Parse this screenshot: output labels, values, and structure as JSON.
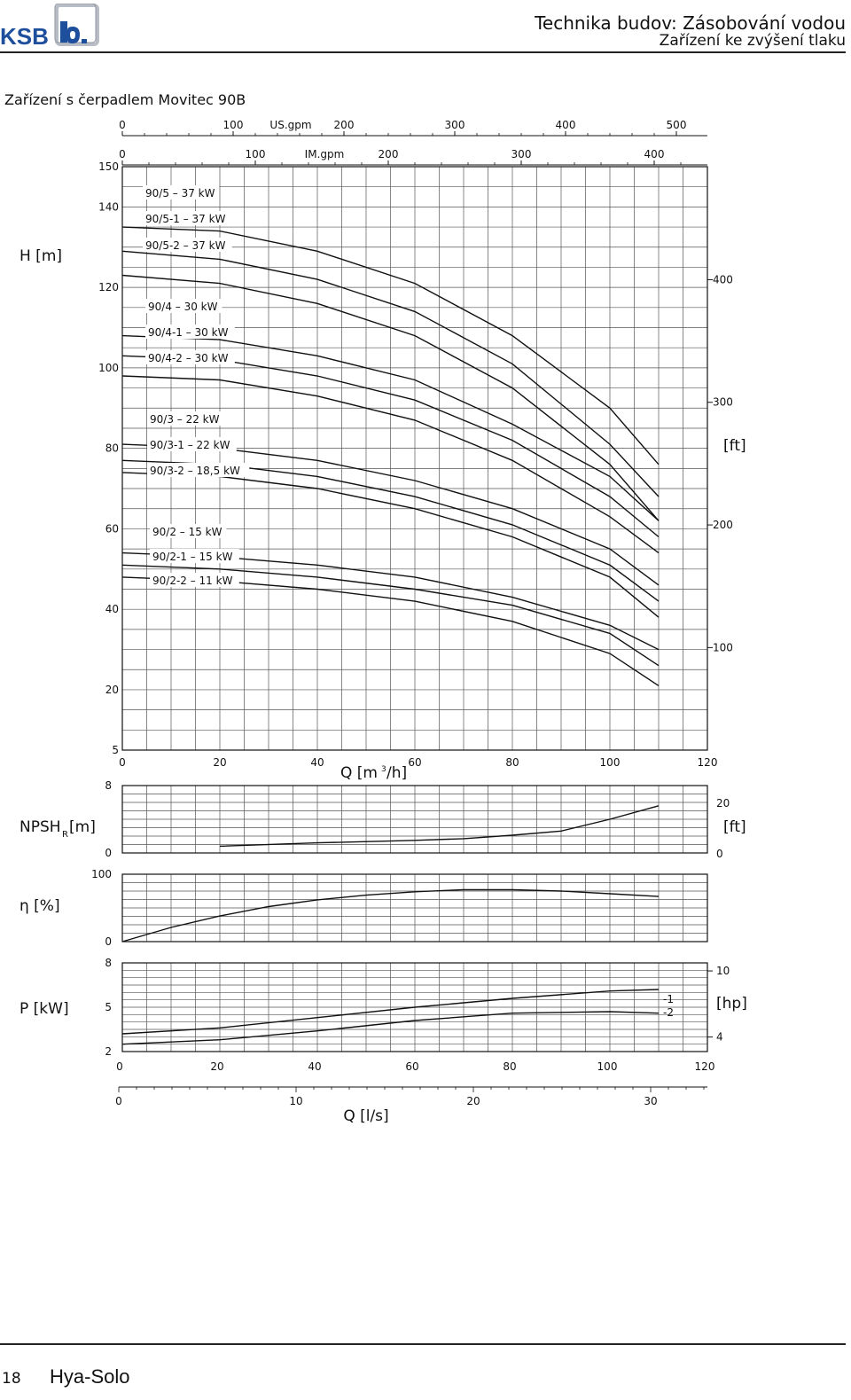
{
  "header": {
    "brand": "KSB",
    "title": "Technika budov: Zásobování vodou",
    "subtitle": "Zařízení ke zvýšení tlaku"
  },
  "section_title": "Zařízení s čerpadlem Movitec 90B",
  "footer": {
    "page": "18",
    "brand": "Hya-Solo"
  },
  "chart_data": {
    "type": "line",
    "top_axes": [
      {
        "unit": "US.gpm",
        "ticks": [
          "0",
          "100",
          "200",
          "300",
          "400",
          "500"
        ]
      },
      {
        "unit": "IM.gpm",
        "ticks": [
          "0",
          "100",
          "200",
          "300",
          "400"
        ]
      }
    ],
    "x_axis": {
      "label_prefix": "Q [m",
      "label_sup": "3",
      "label_suffix": "/h]",
      "range": [
        0,
        120
      ],
      "ticks": [
        "0",
        "20",
        "40",
        "60",
        "80",
        "100",
        "120"
      ]
    },
    "x_axis_ls": {
      "label": "Q [l/s]",
      "ticks": [
        "0",
        "10",
        "20",
        "30"
      ]
    },
    "panels": {
      "head": {
        "ylabel": "H [m]",
        "ylabel_right": "[ft]",
        "ylim": [
          5,
          150
        ],
        "y_ticks": [
          "150",
          "140",
          "120",
          "100",
          "80",
          "60",
          "40",
          "20",
          "5"
        ],
        "ft_ticks": [
          "400",
          "300",
          "200",
          "100"
        ],
        "curve_labels": [
          "90/5 – 37 kW",
          "90/5-1 – 37 kW",
          "90/5-2 – 37 kW",
          "90/4 – 30 kW",
          "90/4-1 – 30 kW",
          "90/4-2 – 30 kW",
          "90/3 – 22 kW",
          "90/3-1 – 22 kW",
          "90/3-2 – 18,5 kW",
          "90/2 – 15 kW",
          "90/2-1 – 15 kW",
          "90/2-2 – 11 kW"
        ],
        "series": [
          {
            "q": [
              0,
              20,
              40,
              60,
              80,
              100,
              110
            ],
            "h": [
              135,
              134,
              129,
              121,
              108,
              90,
              76
            ]
          },
          {
            "q": [
              0,
              20,
              40,
              60,
              80,
              100,
              110
            ],
            "h": [
              129,
              127,
              122,
              114,
              101,
              81,
              68
            ]
          },
          {
            "q": [
              0,
              20,
              40,
              60,
              80,
              100,
              110
            ],
            "h": [
              123,
              121,
              116,
              108,
              95,
              76,
              62
            ]
          },
          {
            "q": [
              0,
              20,
              40,
              60,
              80,
              100,
              110
            ],
            "h": [
              108,
              107,
              103,
              97,
              86,
              73,
              62
            ]
          },
          {
            "q": [
              0,
              20,
              40,
              60,
              80,
              100,
              110
            ],
            "h": [
              103,
              102,
              98,
              92,
              82,
              68,
              58
            ]
          },
          {
            "q": [
              0,
              20,
              40,
              60,
              80,
              100,
              110
            ],
            "h": [
              98,
              97,
              93,
              87,
              77,
              63,
              54
            ]
          },
          {
            "q": [
              0,
              20,
              40,
              60,
              80,
              100,
              110
            ],
            "h": [
              81,
              80,
              77,
              72,
              65,
              55,
              46
            ]
          },
          {
            "q": [
              0,
              20,
              40,
              60,
              80,
              100,
              110
            ],
            "h": [
              77,
              76,
              73,
              68,
              61,
              51,
              42
            ]
          },
          {
            "q": [
              0,
              20,
              40,
              60,
              80,
              100,
              110
            ],
            "h": [
              74,
              73,
              70,
              65,
              58,
              48,
              38
            ]
          },
          {
            "q": [
              0,
              20,
              40,
              60,
              80,
              100,
              110
            ],
            "h": [
              54,
              53,
              51,
              48,
              43,
              36,
              30
            ]
          },
          {
            "q": [
              0,
              20,
              40,
              60,
              80,
              100,
              110
            ],
            "h": [
              51,
              50,
              48,
              45,
              41,
              34,
              26
            ]
          },
          {
            "q": [
              0,
              20,
              40,
              60,
              80,
              100,
              110
            ],
            "h": [
              48,
              47,
              45,
              42,
              37,
              29,
              21
            ]
          }
        ]
      },
      "npsh": {
        "ylabel_main": "NPSH",
        "ylabel_sub": "R",
        "ylabel_unit": " [m]",
        "ylabel_right": "[ft]",
        "ylim": [
          0,
          8
        ],
        "y_ticks": [
          "8",
          "0"
        ],
        "ft_ticks": [
          "20",
          "0"
        ],
        "series": [
          {
            "q": [
              20,
              40,
              60,
              70,
              80,
              90,
              100,
              110
            ],
            "v": [
              0.8,
              1.2,
              1.5,
              1.7,
              2.1,
              2.6,
              4.0,
              5.6
            ]
          }
        ]
      },
      "efficiency": {
        "ylabel": "η [%]",
        "ylim": [
          0,
          100
        ],
        "y_ticks": [
          "100",
          "0"
        ],
        "series": [
          {
            "q": [
              0,
              10,
              20,
              30,
              40,
              50,
              60,
              70,
              80,
              90,
              100,
              110
            ],
            "v": [
              0,
              21,
              38,
              52,
              62,
              69,
              74,
              77,
              77,
              75,
              71,
              67
            ]
          }
        ]
      },
      "power": {
        "ylabel": "P [kW]",
        "ylabel_right": "[hp]",
        "ylim": [
          2,
          8
        ],
        "y_ticks": [
          "8",
          "5",
          "2"
        ],
        "hp_ticks": [
          "10",
          "4"
        ],
        "series_labels": [
          "-1",
          "-2"
        ],
        "series": [
          {
            "q": [
              0,
              20,
              40,
              60,
              80,
              100,
              110
            ],
            "v": [
              3.2,
              3.6,
              4.3,
              5.0,
              5.6,
              6.1,
              6.2
            ]
          },
          {
            "q": [
              0,
              20,
              40,
              60,
              80,
              100,
              110
            ],
            "v": [
              2.5,
              2.8,
              3.4,
              4.1,
              4.6,
              4.7,
              4.6
            ]
          }
        ]
      }
    }
  }
}
